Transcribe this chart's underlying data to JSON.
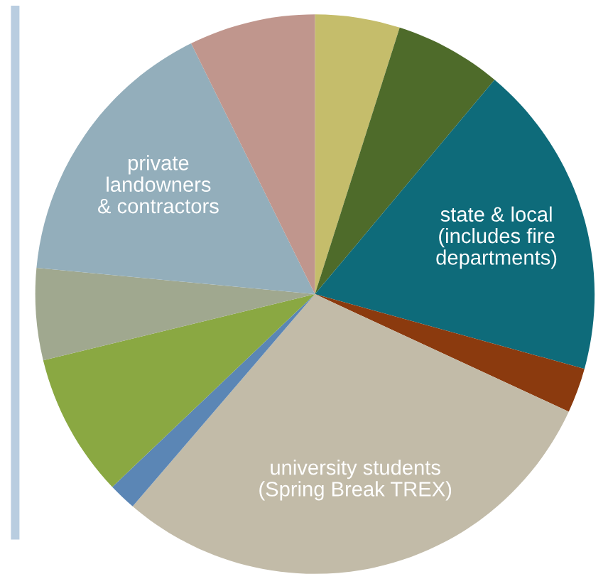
{
  "chart_data": {
    "type": "pie",
    "categories": [
      null,
      null,
      "state & local\n(includes fire\ndepartments)",
      null,
      "university students\n(Spring Break TREX)",
      null,
      null,
      null,
      "private\nlandowners\n& contractors",
      null
    ],
    "values": [
      4.9,
      6.2,
      18.2,
      2.6,
      29.4,
      1.6,
      8.3,
      5.3,
      16.2,
      7.3
    ],
    "colors": [
      "#c5bd6b",
      "#4e6b2a",
      "#0e6b7a",
      "#8b3a0e",
      "#c2bba8",
      "#5b86b5",
      "#8aa842",
      "#a0a88f",
      "#93aebb",
      "#c0968d"
    ]
  }
}
